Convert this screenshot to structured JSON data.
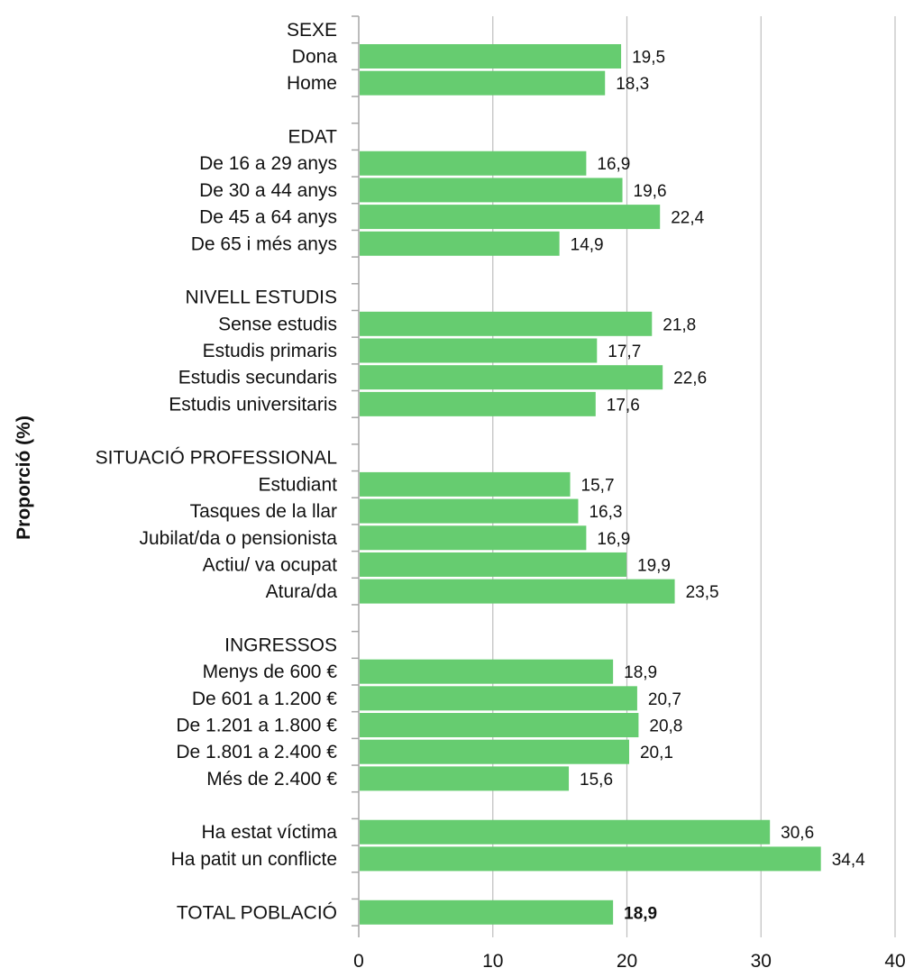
{
  "chart_data": {
    "type": "bar",
    "orientation": "horizontal",
    "ylabel": "Proporció  (%)",
    "xlim": [
      0,
      40
    ],
    "x_ticks": [
      "0",
      "10",
      "20",
      "30",
      "40"
    ],
    "grid": true,
    "bar_color": "#66cc70",
    "rows": [
      {
        "label": "SEXE",
        "header": true
      },
      {
        "label": "Dona",
        "value": 19.5,
        "value_label": "19,5"
      },
      {
        "label": "Home",
        "value": 18.3,
        "value_label": "18,3"
      },
      {
        "label": "",
        "spacer": true
      },
      {
        "label": "EDAT",
        "header": true
      },
      {
        "label": "De 16 a 29 anys",
        "value": 16.9,
        "value_label": "16,9"
      },
      {
        "label": "De 30 a 44 anys",
        "value": 19.6,
        "value_label": "19,6"
      },
      {
        "label": "De 45 a 64 anys",
        "value": 22.4,
        "value_label": "22,4"
      },
      {
        "label": "De 65 i més anys",
        "value": 14.9,
        "value_label": "14,9"
      },
      {
        "label": "",
        "spacer": true
      },
      {
        "label": "NIVELL ESTUDIS",
        "header": true
      },
      {
        "label": "Sense estudis",
        "value": 21.8,
        "value_label": "21,8"
      },
      {
        "label": "Estudis primaris",
        "value": 17.7,
        "value_label": "17,7"
      },
      {
        "label": "Estudis secundaris",
        "value": 22.6,
        "value_label": "22,6"
      },
      {
        "label": "Estudis universitaris",
        "value": 17.6,
        "value_label": "17,6"
      },
      {
        "label": "",
        "spacer": true
      },
      {
        "label": "SITUACIÓ PROFESSIONAL",
        "header": true
      },
      {
        "label": "Estudiant",
        "value": 15.7,
        "value_label": "15,7"
      },
      {
        "label": "Tasques de la llar",
        "value": 16.3,
        "value_label": "16,3"
      },
      {
        "label": "Jubilat/da o pensionista",
        "value": 16.9,
        "value_label": "16,9"
      },
      {
        "label": "Actiu/ va ocupat",
        "value": 19.9,
        "value_label": "19,9"
      },
      {
        "label": "Atura/da",
        "value": 23.5,
        "value_label": "23,5"
      },
      {
        "label": "",
        "spacer": true
      },
      {
        "label": "INGRESSOS",
        "header": true
      },
      {
        "label": "Menys de 600 €",
        "value": 18.9,
        "value_label": "18,9"
      },
      {
        "label": "De 601 a 1.200 €",
        "value": 20.7,
        "value_label": "20,7"
      },
      {
        "label": "De 1.201 a 1.800 €",
        "value": 20.8,
        "value_label": "20,8"
      },
      {
        "label": "De 1.801 a 2.400 €",
        "value": 20.1,
        "value_label": "20,1"
      },
      {
        "label": "Més de 2.400 €",
        "value": 15.6,
        "value_label": "15,6"
      },
      {
        "label": "",
        "spacer": true
      },
      {
        "label": "Ha estat víctima",
        "value": 30.6,
        "value_label": "30,6"
      },
      {
        "label": "Ha patit un conflicte",
        "value": 34.4,
        "value_label": "34,4"
      },
      {
        "label": "",
        "spacer": true
      },
      {
        "label": "TOTAL POBLACIÓ",
        "value": 18.9,
        "value_label": "18,9",
        "bold": true
      }
    ]
  }
}
